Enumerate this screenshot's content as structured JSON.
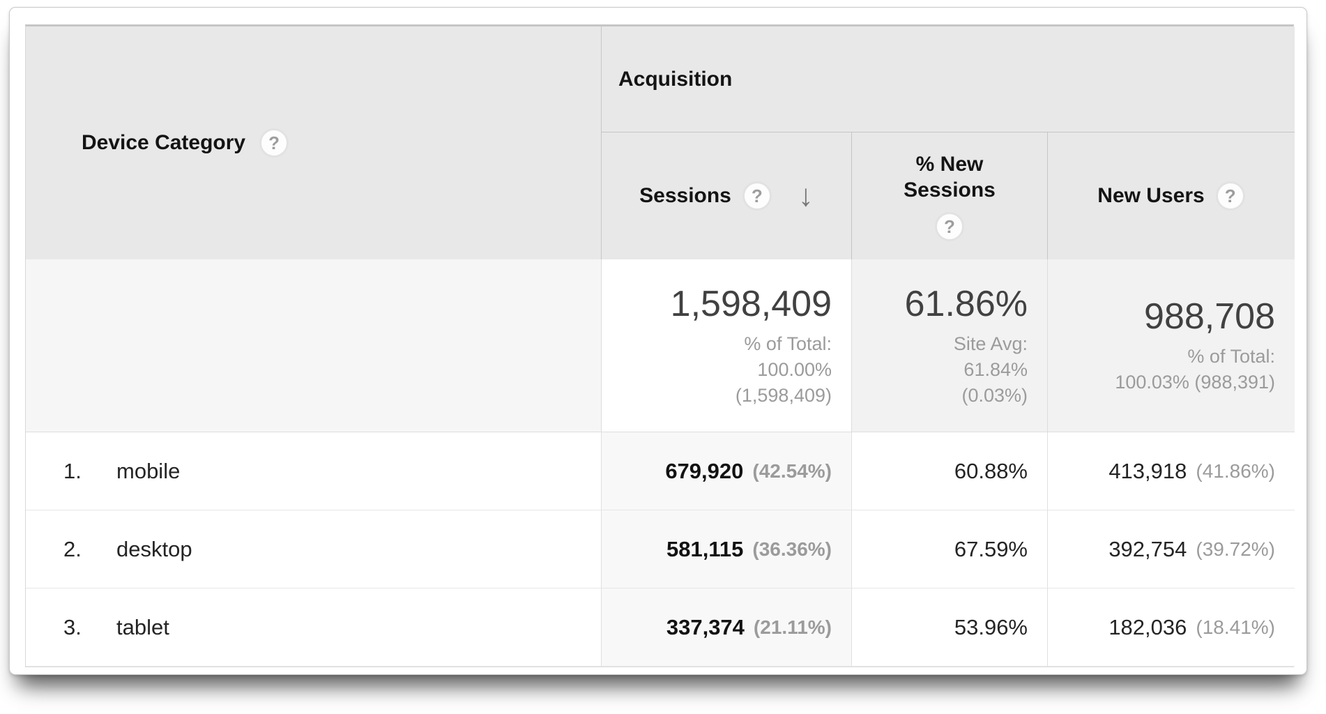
{
  "table": {
    "dimension_header": {
      "label": "Device Category"
    },
    "group_header": {
      "label": "Acquisition"
    },
    "columns": [
      {
        "label": "Sessions",
        "sort": "descending"
      },
      {
        "label": "% New Sessions",
        "sort": "none"
      },
      {
        "label": "New Users",
        "sort": "none"
      }
    ],
    "summary": {
      "sessions": {
        "value": "1,598,409",
        "lines": [
          "% of Total:",
          "100.00%",
          "(1,598,409)"
        ]
      },
      "new_sessions": {
        "value": "61.86%",
        "lines": [
          "Site Avg:",
          "61.84%",
          "(0.03%)"
        ]
      },
      "new_users": {
        "value": "988,708",
        "lines": [
          "% of Total:",
          "100.03% (988,391)"
        ]
      }
    },
    "rows": [
      {
        "rank": "1.",
        "label": "mobile",
        "sessions": "679,920",
        "sessions_pct": "(42.54%)",
        "new_sessions_pct": "60.88%",
        "new_users": "413,918",
        "new_users_pct": "(41.86%)"
      },
      {
        "rank": "2.",
        "label": "desktop",
        "sessions": "581,115",
        "sessions_pct": "(36.36%)",
        "new_sessions_pct": "67.59%",
        "new_users": "392,754",
        "new_users_pct": "(39.72%)"
      },
      {
        "rank": "3.",
        "label": "tablet",
        "sessions": "337,374",
        "sessions_pct": "(21.11%)",
        "new_sessions_pct": "53.96%",
        "new_users": "182,036",
        "new_users_pct": "(18.41%)"
      }
    ],
    "icons": {
      "help": "?",
      "sort_desc": "↓"
    }
  },
  "colors": {
    "header_bg": "#e8e8e8",
    "summary_shaded_bg": "#f2f2f2",
    "sorted_column_bg": "#f8f8f8",
    "muted_text": "#9b9b9b",
    "primary_text": "#242424"
  }
}
